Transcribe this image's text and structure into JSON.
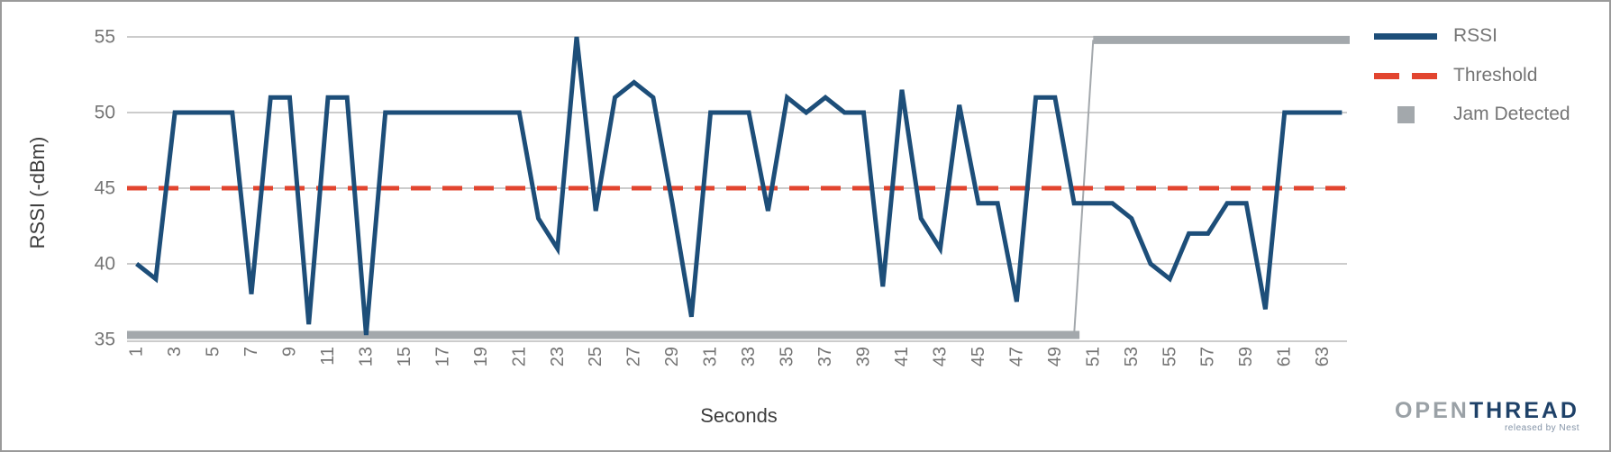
{
  "chart_data": {
    "type": "line",
    "title": "",
    "xlabel": "Seconds",
    "ylabel": "RSSI (-dBm)",
    "ylim": [
      35,
      55
    ],
    "yticks": [
      35,
      40,
      45,
      50,
      55
    ],
    "xticks": [
      1,
      3,
      5,
      7,
      9,
      11,
      13,
      15,
      17,
      19,
      21,
      23,
      25,
      27,
      29,
      31,
      33,
      35,
      37,
      39,
      41,
      43,
      45,
      47,
      49,
      51,
      53,
      55,
      57,
      59,
      61,
      63
    ],
    "grid": true,
    "legend_position": "top-right",
    "x": [
      1,
      2,
      3,
      4,
      5,
      6,
      7,
      8,
      9,
      10,
      11,
      12,
      13,
      14,
      15,
      16,
      17,
      18,
      19,
      20,
      21,
      22,
      23,
      24,
      25,
      26,
      27,
      28,
      29,
      30,
      31,
      32,
      33,
      34,
      35,
      36,
      37,
      38,
      39,
      40,
      41,
      42,
      43,
      44,
      45,
      46,
      47,
      48,
      49,
      50,
      51,
      52,
      53,
      54,
      55,
      56,
      57,
      58,
      59,
      60,
      61,
      62,
      63,
      64
    ],
    "series": [
      {
        "name": "RSSI",
        "type": "line",
        "style": "solid",
        "color": "#1d4e79",
        "values": [
          40,
          39,
          50,
          50,
          50,
          50,
          38,
          51,
          51,
          36,
          51,
          51,
          35.3,
          50,
          50,
          50,
          50,
          50,
          50,
          50,
          50,
          43,
          41,
          55,
          43.5,
          51,
          52,
          51,
          44,
          36.5,
          50,
          50,
          50,
          43.5,
          51,
          50,
          51,
          50,
          50,
          38.5,
          51.5,
          43,
          41,
          50.5,
          44,
          44,
          37.5,
          51,
          51,
          44,
          44,
          44,
          43,
          40,
          39,
          42,
          42,
          44,
          44,
          37,
          50,
          50,
          50,
          50
        ]
      },
      {
        "name": "Threshold",
        "type": "line",
        "style": "dashed",
        "color": "#e2452f",
        "constant_value": 45
      },
      {
        "name": "Jam Detected",
        "type": "step",
        "style": "thick",
        "color": "#a3a8ac",
        "low_value": 35.3,
        "high_value": 54.8,
        "low_until_second": 50,
        "high_from_second": 51
      }
    ]
  },
  "axes": {
    "x_title": "Seconds",
    "y_title": "RSSI (-dBm)"
  },
  "legend": {
    "items": [
      {
        "label": "RSSI"
      },
      {
        "label": "Threshold"
      },
      {
        "label": "Jam Detected"
      }
    ]
  },
  "logo": {
    "open": "OPEN",
    "thread": "THREAD",
    "tagline": "released by Nest"
  },
  "colors": {
    "rssi_line": "#1d4e79",
    "threshold_line": "#e2452f",
    "jam_bar": "#a3a8ac",
    "gridline": "#cccccc",
    "tick_label": "#757575",
    "axis_title": "#3d3d3d",
    "logo_gray": "#9aa1a6",
    "logo_navy": "#1e4168",
    "frame_border": "#9a9a9a"
  }
}
